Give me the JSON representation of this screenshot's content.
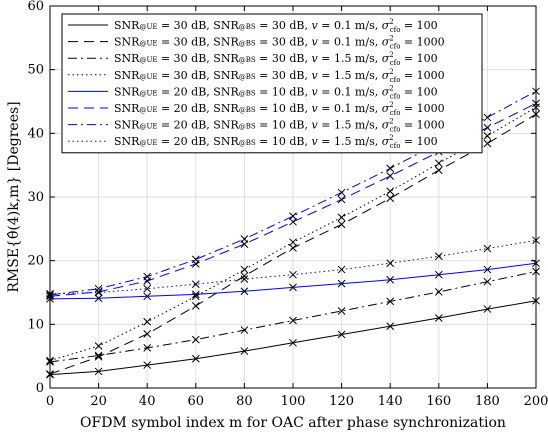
{
  "chart_data": {
    "type": "line",
    "xlabel": "OFDM symbol index m for OAC after phase synchronization",
    "ylabel": "RMSE{θ̂(4)k,m} [Degrees]",
    "xlim": [
      0,
      200
    ],
    "ylim": [
      0,
      60
    ],
    "xticks": [
      0,
      20,
      40,
      60,
      80,
      100,
      120,
      140,
      160,
      180,
      200
    ],
    "yticks": [
      0,
      10,
      20,
      30,
      40,
      50,
      60
    ],
    "grid": true,
    "legend_position": "top-left",
    "x": [
      0,
      20,
      40,
      60,
      80,
      100,
      120,
      140,
      160,
      180,
      200
    ],
    "series": [
      {
        "name": "SNR@UE = 30 dB, SNR@BS = 30 dB, v = 0.1 m/s, σ²cfo = 100",
        "legend": {
          "a": "SNR",
          "b": "@UE",
          "c": " = 30 dB, SNR",
          "d": "@BS",
          "e": " = 30 dB, ",
          "f": "v",
          "g": " = 0.1 m/s, ",
          "h": "σ",
          "i": "2",
          "j": "cfo",
          "k": " = 100"
        },
        "color": "#000000",
        "dash": "solid",
        "values": [
          2.1,
          2.6,
          3.6,
          4.6,
          5.8,
          7.1,
          8.4,
          9.7,
          11.0,
          12.4,
          13.7
        ]
      },
      {
        "name": "SNR@UE = 30 dB, SNR@BS = 30 dB, v = 0.1 m/s, σ²cfo = 1000",
        "legend": {
          "a": "SNR",
          "b": "@UE",
          "c": " = 30 dB, SNR",
          "d": "@BS",
          "e": " = 30 dB, ",
          "f": "v",
          "g": " = 0.1 m/s, ",
          "h": "σ",
          "i": "2",
          "j": "cfo",
          "k": " = 1000"
        },
        "color": "#000000",
        "dash": "dashed",
        "values": [
          2.2,
          4.9,
          8.5,
          12.9,
          17.6,
          22.0,
          25.7,
          29.8,
          34.2,
          38.4,
          43.0
        ]
      },
      {
        "name": "SNR@UE = 30 dB, SNR@BS = 30 dB, v = 1.5 m/s, σ²cfo = 100",
        "legend": {
          "a": "SNR",
          "b": "@UE",
          "c": " = 30 dB, SNR",
          "d": "@BS",
          "e": " = 30 dB, ",
          "f": "v",
          "g": " = 1.5 m/s, ",
          "h": "σ",
          "i": "2",
          "j": "cfo",
          "k": " = 100"
        },
        "color": "#000000",
        "dash": "dashdot",
        "values": [
          4.1,
          5.1,
          6.3,
          7.6,
          9.1,
          10.6,
          12.1,
          13.6,
          15.1,
          16.7,
          18.3
        ]
      },
      {
        "name": "SNR@UE = 30 dB, SNR@BS = 30 dB, v = 1.5 m/s, σ²cfo = 1000",
        "legend": {
          "a": "SNR",
          "b": "@UE",
          "c": " = 30 dB, SNR",
          "d": "@BS",
          "e": " = 30 dB, ",
          "f": "v",
          "g": " = 1.5 m/s, ",
          "h": "σ",
          "i": "2",
          "j": "cfo",
          "k": " = 1000"
        },
        "color": "#000000",
        "dash": "dotted",
        "values": [
          4.3,
          6.6,
          10.4,
          14.4,
          18.6,
          22.9,
          26.8,
          30.9,
          35.3,
          39.6,
          44.1
        ]
      },
      {
        "name": "SNR@UE = 20 dB, SNR@BS = 10 dB, v = 0.1 m/s, σ²cfo = 100",
        "legend": {
          "a": "SNR",
          "b": "@UE",
          "c": " = 20 dB, SNR",
          "d": "@BS",
          "e": " = 10 dB, ",
          "f": "v",
          "g": " = 0.1 m/s, ",
          "h": "σ",
          "i": "2",
          "j": "cfo",
          "k": " = 100"
        },
        "color": "#0000ff",
        "dash": "solid",
        "values": [
          14.0,
          14.1,
          14.4,
          14.7,
          15.2,
          15.8,
          16.4,
          17.0,
          17.8,
          18.6,
          19.6
        ]
      },
      {
        "name": "SNR@UE = 20 dB, SNR@BS = 10 dB, v = 0.1 m/s, σ²cfo = 1000",
        "legend": {
          "a": "SNR",
          "b": "@UE",
          "c": " = 20 dB, SNR",
          "d": "@BS",
          "e": " = 10 dB, ",
          "f": "v",
          "g": " = 0.1 m/s, ",
          "h": "σ",
          "i": "2",
          "j": "cfo",
          "k": " = 1000"
        },
        "color": "#0000ff",
        "dash": "dashed",
        "values": [
          14.4,
          15.1,
          16.8,
          19.5,
          22.6,
          26.1,
          29.6,
          33.3,
          37.1,
          40.9,
          44.7
        ]
      },
      {
        "name": "SNR@UE = 20 dB, SNR@BS = 10 dB, v = 1.5 m/s, σ²cfo = 1000",
        "legend": {
          "a": "SNR",
          "b": "@UE",
          "c": " = 20 dB, SNR",
          "d": "@BS",
          "e": " = 10 dB, ",
          "f": "v",
          "g": " = 1.5 m/s, ",
          "h": "σ",
          "i": "2",
          "j": "cfo",
          "k": " = 1000"
        },
        "color": "#0000ff",
        "dash": "dashdot",
        "values": [
          14.6,
          15.6,
          17.5,
          20.2,
          23.4,
          27.0,
          30.7,
          34.5,
          38.5,
          42.5,
          46.6
        ]
      },
      {
        "name": "SNR@UE = 20 dB, SNR@BS = 10 dB, v = 1.5 m/s, σ²cfo = 100",
        "legend": {
          "a": "SNR",
          "b": "@UE",
          "c": " = 20 dB, SNR",
          "d": "@BS",
          "e": " = 10 dB, ",
          "f": "v",
          "g": " = 1.5 m/s, ",
          "h": "σ",
          "i": "2",
          "j": "cfo",
          "k": " = 100"
        },
        "color": "#0000ff",
        "dash": "dotted",
        "values": [
          14.8,
          15.0,
          15.6,
          16.3,
          17.1,
          17.8,
          18.6,
          19.6,
          20.7,
          21.9,
          23.2
        ]
      }
    ]
  }
}
